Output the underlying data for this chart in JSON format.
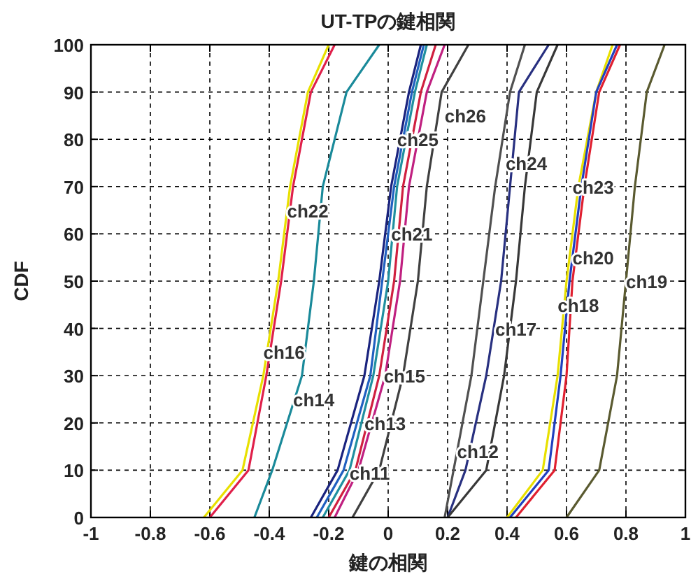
{
  "chart_data": {
    "type": "line",
    "title": "UT-TPの鍵相関",
    "xlabel": "鍵の相関",
    "ylabel": "CDF",
    "xlim": [
      -1,
      1
    ],
    "xticks": [
      -1,
      -0.8,
      -0.6,
      -0.4,
      -0.2,
      0,
      0.2,
      0.4,
      0.6,
      0.8,
      1
    ],
    "ylim": [
      0,
      100
    ],
    "yticks": [
      0,
      10,
      20,
      30,
      40,
      50,
      60,
      70,
      80,
      90,
      100
    ],
    "grid": true,
    "marker": "none",
    "line_style": "solid",
    "series": [
      {
        "color": "#e0204a",
        "x": [
          -0.6,
          -0.47,
          -0.41,
          -0.36,
          -0.32,
          -0.26,
          -0.18
        ],
        "values": [
          0,
          10,
          30,
          50,
          70,
          90,
          100
        ]
      },
      {
        "color": "#e8e000",
        "x": [
          -0.62,
          -0.49,
          -0.42,
          -0.37,
          -0.33,
          -0.27,
          -0.2
        ],
        "values": [
          0,
          10,
          30,
          50,
          70,
          90,
          100
        ]
      },
      {
        "color": "#1a8a9a",
        "x": [
          -0.45,
          -0.39,
          -0.29,
          -0.25,
          -0.22,
          -0.14,
          -0.03
        ],
        "values": [
          0,
          10,
          30,
          50,
          70,
          90,
          100
        ]
      },
      {
        "color": "#1a237e",
        "x": [
          -0.26,
          -0.17,
          -0.08,
          -0.03,
          0.01,
          0.07,
          0.11
        ],
        "values": [
          0,
          10,
          30,
          50,
          70,
          90,
          100
        ]
      },
      {
        "color": "#2060c0",
        "x": [
          -0.24,
          -0.15,
          -0.06,
          -0.02,
          0.02,
          0.08,
          0.12
        ],
        "values": [
          0,
          10,
          30,
          50,
          70,
          90,
          100
        ]
      },
      {
        "color": "#2090a0",
        "x": [
          -0.22,
          -0.13,
          -0.05,
          0.0,
          0.03,
          0.09,
          0.13
        ],
        "values": [
          0,
          10,
          30,
          50,
          70,
          90,
          100
        ]
      },
      {
        "color": "#d02040",
        "x": [
          -0.2,
          -0.11,
          -0.03,
          0.02,
          0.05,
          0.11,
          0.16
        ],
        "values": [
          0,
          10,
          30,
          50,
          70,
          90,
          100
        ]
      },
      {
        "color": "#c02080",
        "x": [
          -0.18,
          -0.1,
          -0.01,
          0.04,
          0.07,
          0.13,
          0.19
        ],
        "values": [
          0,
          10,
          30,
          50,
          70,
          90,
          100
        ]
      },
      {
        "color": "#404040",
        "x": [
          -0.12,
          -0.03,
          0.05,
          0.1,
          0.13,
          0.18,
          0.27
        ],
        "values": [
          0,
          10,
          30,
          50,
          70,
          90,
          100
        ]
      },
      {
        "color": "#505050",
        "x": [
          0.19,
          0.22,
          0.28,
          0.32,
          0.36,
          0.41,
          0.46
        ],
        "values": [
          0,
          10,
          30,
          50,
          70,
          90,
          100
        ]
      },
      {
        "color": "#283080",
        "x": [
          0.2,
          0.26,
          0.33,
          0.38,
          0.41,
          0.44,
          0.54
        ],
        "values": [
          0,
          10,
          30,
          50,
          70,
          90,
          100
        ]
      },
      {
        "color": "#383838",
        "x": [
          0.2,
          0.33,
          0.39,
          0.43,
          0.46,
          0.5,
          0.57
        ],
        "values": [
          0,
          10,
          30,
          50,
          70,
          90,
          100
        ]
      },
      {
        "color": "#e8e000",
        "x": [
          0.4,
          0.52,
          0.57,
          0.6,
          0.64,
          0.7,
          0.755
        ],
        "values": [
          0,
          10,
          30,
          50,
          70,
          90,
          100
        ]
      },
      {
        "color": "#2040c0",
        "x": [
          0.41,
          0.54,
          0.58,
          0.61,
          0.65,
          0.7,
          0.77
        ],
        "values": [
          0,
          10,
          30,
          50,
          70,
          90,
          100
        ]
      },
      {
        "color": "#e02030",
        "x": [
          0.43,
          0.56,
          0.6,
          0.62,
          0.66,
          0.71,
          0.78
        ],
        "values": [
          0,
          10,
          30,
          50,
          70,
          90,
          100
        ]
      },
      {
        "color": "#5a5a30",
        "x": [
          0.6,
          0.71,
          0.77,
          0.8,
          0.83,
          0.87,
          0.93
        ],
        "values": [
          0,
          10,
          30,
          50,
          70,
          90,
          100
        ]
      }
    ],
    "annotations": [
      {
        "text": "ch22",
        "x": -0.34,
        "y": 65
      },
      {
        "text": "ch16",
        "x": -0.42,
        "y": 35
      },
      {
        "text": "ch14",
        "x": -0.32,
        "y": 25
      },
      {
        "text": "ch11",
        "x": -0.13,
        "y": 9.5
      },
      {
        "text": "ch13",
        "x": -0.08,
        "y": 20
      },
      {
        "text": "ch15",
        "x": -0.015,
        "y": 30
      },
      {
        "text": "ch21",
        "x": 0.01,
        "y": 60
      },
      {
        "text": "ch25",
        "x": 0.03,
        "y": 80
      },
      {
        "text": "ch26",
        "x": 0.19,
        "y": 85
      },
      {
        "text": "ch24",
        "x": 0.395,
        "y": 75
      },
      {
        "text": "ch17",
        "x": 0.36,
        "y": 40
      },
      {
        "text": "ch12",
        "x": 0.232,
        "y": 14
      },
      {
        "text": "ch23",
        "x": 0.62,
        "y": 70
      },
      {
        "text": "ch20",
        "x": 0.62,
        "y": 55
      },
      {
        "text": "ch18",
        "x": 0.57,
        "y": 45
      },
      {
        "text": "ch19",
        "x": 0.8,
        "y": 50
      }
    ]
  }
}
